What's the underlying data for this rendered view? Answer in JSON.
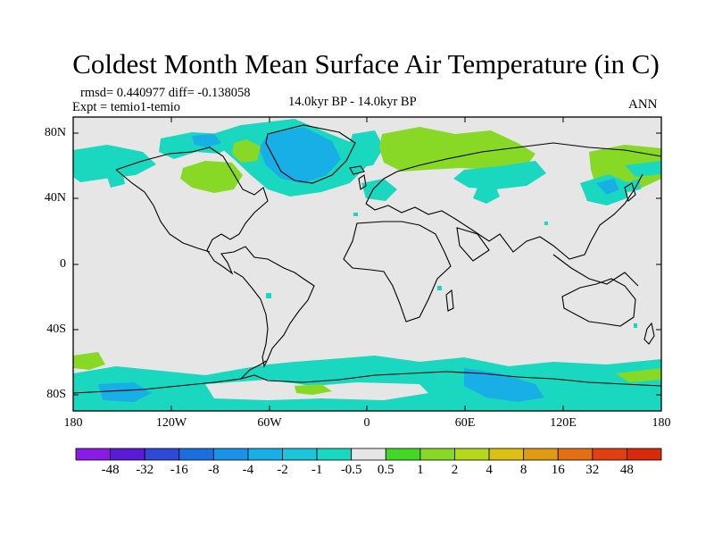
{
  "title": "Coldest Month Mean Surface Air Temperature (in C)",
  "stats": "rmsd= 0.440977 diff= -0.138058",
  "experiment": "Expt = temio1-temio",
  "period": "14.0kyr BP - 14.0kyr BP",
  "season": "ANN",
  "y_axis_labels": [
    "80N",
    "40N",
    "0",
    "40S",
    "80S"
  ],
  "x_axis_labels": [
    "180",
    "120W",
    "60W",
    "0",
    "60E",
    "120E",
    "180"
  ],
  "colorbar": {
    "labels": [
      "-48",
      "-32",
      "-16",
      "-8",
      "-4",
      "-2",
      "-1",
      "-0.5",
      "0.5",
      "1",
      "2",
      "4",
      "8",
      "16",
      "32",
      "48"
    ],
    "colors": [
      "#8a1ae6",
      "#5a1ad6",
      "#2e48d8",
      "#1a6ee0",
      "#1a92e6",
      "#18aee6",
      "#1ac6dc",
      "#1ad8c0",
      "#e6e6e6",
      "#44d826",
      "#88d826",
      "#b4d81a",
      "#dcc014",
      "#e09a14",
      "#e27012",
      "#e04010",
      "#d62a0a"
    ]
  },
  "colors": {
    "ocean_background": "#e6e6e6",
    "cool_anomaly": "#1ad8c0",
    "cold_anomaly": "#18aee6",
    "warm_anomaly": "#88d826",
    "mild_warm_anomaly": "#44d826",
    "coastline": "#000000"
  }
}
